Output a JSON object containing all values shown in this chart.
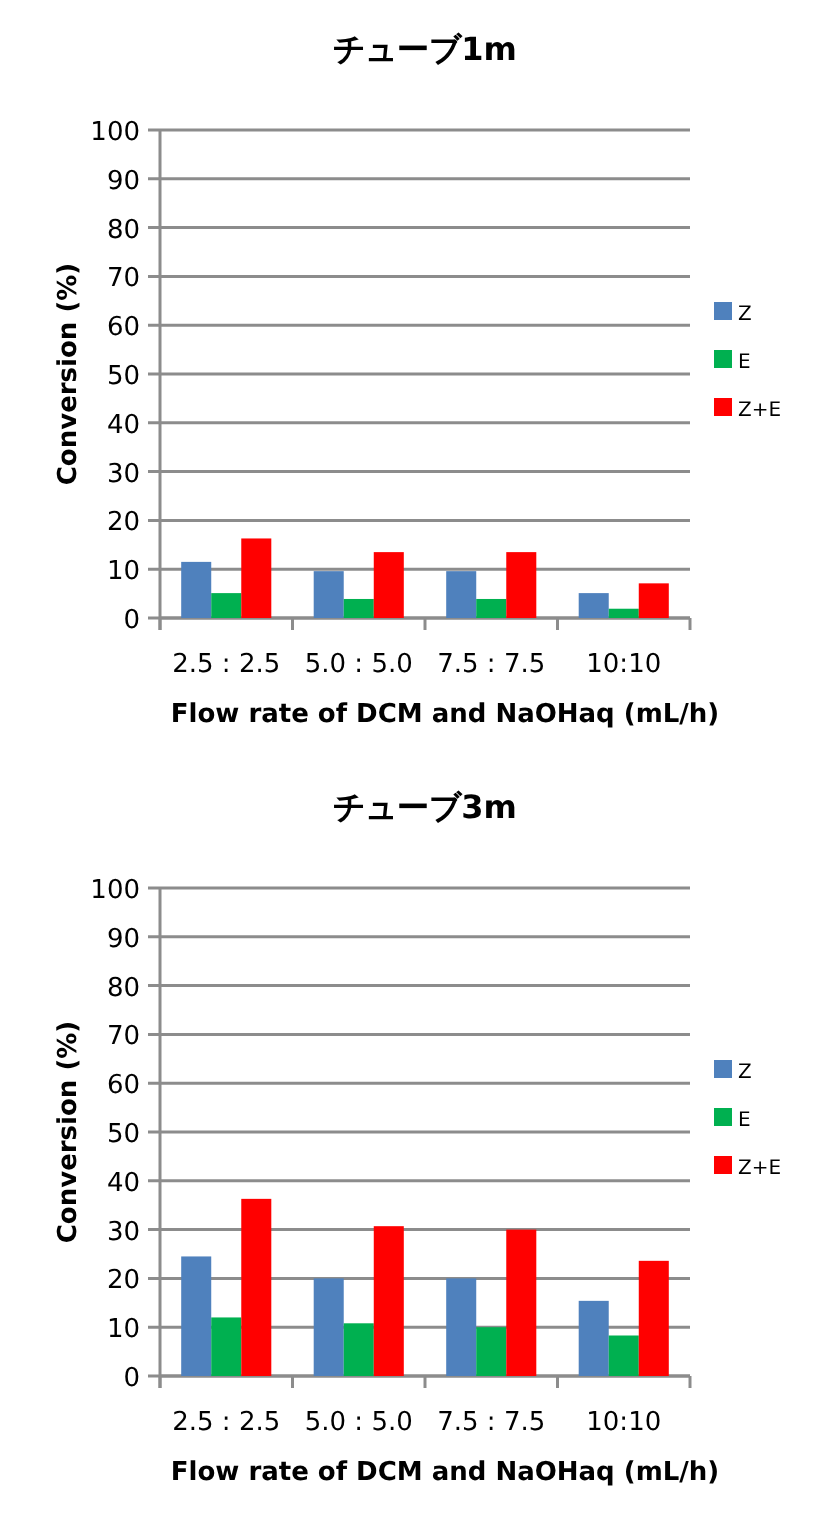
{
  "chart_data": [
    {
      "type": "bar",
      "title": "チューブ1m",
      "xlabel": "Flow rate of DCM and NaOHaq (mL/h)",
      "ylabel": "Conversion (%)",
      "categories": [
        "2.5 : 2.5",
        "5.0 : 5.0",
        "7.5 : 7.5",
        "10:10"
      ],
      "series": [
        {
          "name": "Z",
          "color": "#4f81bd",
          "values": [
            11.5,
            9.6,
            9.6,
            5.1
          ]
        },
        {
          "name": "E",
          "color": "#00b050",
          "values": [
            5.1,
            3.9,
            3.9,
            1.9
          ]
        },
        {
          "name": "Z+E",
          "color": "#ff0000",
          "values": [
            16.3,
            13.5,
            13.5,
            7.1
          ]
        }
      ],
      "ylim": [
        0,
        100
      ],
      "yticks": [
        0,
        10,
        20,
        30,
        40,
        50,
        60,
        70,
        80,
        90,
        100
      ],
      "grid": "y",
      "legend": "right"
    },
    {
      "type": "bar",
      "title": "チューブ3m",
      "xlabel": "Flow rate of DCM and NaOHaq (mL/h)",
      "ylabel": "Conversion (%)",
      "categories": [
        "2.5 : 2.5",
        "5.0 : 5.0",
        "7.5 : 7.5",
        "10:10"
      ],
      "series": [
        {
          "name": "Z",
          "color": "#4f81bd",
          "values": [
            24.5,
            20,
            20,
            15.4
          ]
        },
        {
          "name": "E",
          "color": "#00b050",
          "values": [
            12,
            10.8,
            10,
            8.3
          ]
        },
        {
          "name": "Z+E",
          "color": "#ff0000",
          "values": [
            36.3,
            30.7,
            30,
            23.6
          ]
        }
      ],
      "ylim": [
        0,
        100
      ],
      "yticks": [
        0,
        10,
        20,
        30,
        40,
        50,
        60,
        70,
        80,
        90,
        100
      ],
      "grid": "y",
      "legend": "right"
    }
  ]
}
